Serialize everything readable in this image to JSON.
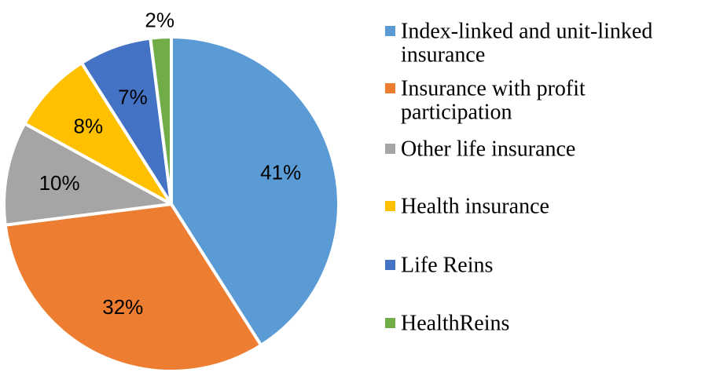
{
  "chart_data": {
    "type": "pie",
    "title": "",
    "legend_position": "right",
    "categories": [
      "Index-linked and unit-linked insurance",
      "Insurance with profit participation",
      "Other life insurance",
      "Health insurance",
      "Life Reins",
      "HealthReins"
    ],
    "values": [
      41,
      32,
      10,
      8,
      7,
      2
    ],
    "value_labels": [
      "41%",
      "32%",
      "10%",
      "8%",
      "7%",
      "2%"
    ],
    "legend_lines": [
      [
        "Index-linked and unit-linked",
        "insurance"
      ],
      [
        "Insurance with profit",
        "participation"
      ],
      [
        "Other life insurance"
      ],
      [
        "Health insurance"
      ],
      [
        "Life Reins"
      ],
      [
        "HealthReins"
      ]
    ],
    "colors": [
      "#5b9bd5",
      "#ed7d31",
      "#a5a5a5",
      "#ffc000",
      "#4472c4",
      "#70ad47"
    ]
  }
}
